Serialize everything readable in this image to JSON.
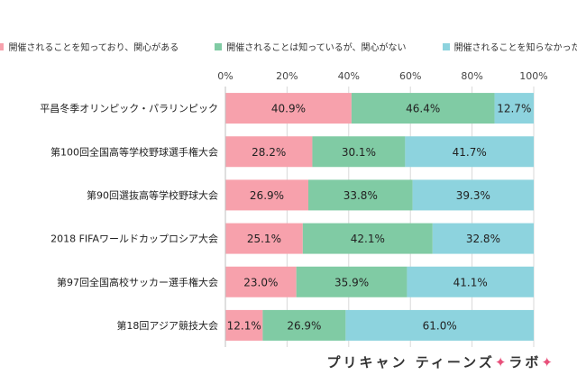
{
  "chart_data": {
    "type": "bar",
    "orientation": "horizontal",
    "stacked": true,
    "categories": [
      "平昌冬季オリンピック・パラリンピック",
      "第100回全国高等学校野球選手権大会",
      "第90回選抜高等学校野球大会",
      "2018 FIFAワールドカップロシア大会",
      "第97回全国高校サッカー選手権大会",
      "第18回アジア競技大会"
    ],
    "series": [
      {
        "name": "開催されることを知っており、関心がある",
        "color": "#f7a1ac",
        "values": [
          40.9,
          28.2,
          26.9,
          25.1,
          23.0,
          12.1
        ]
      },
      {
        "name": "開催されることは知っているが、関心がない",
        "color": "#80cba4",
        "values": [
          46.4,
          30.1,
          33.8,
          42.1,
          35.9,
          26.9
        ]
      },
      {
        "name": "開催されることを知らなかった",
        "color": "#8dd3de",
        "values": [
          12.7,
          41.7,
          39.3,
          32.8,
          41.1,
          61.0
        ]
      }
    ],
    "xlim": [
      0,
      100
    ],
    "xticks": [
      "0%",
      "20%",
      "40%",
      "60%",
      "80%",
      "100%"
    ],
    "grid": true,
    "legend_position": "top"
  },
  "brand": {
    "text": "プリキャン ティーンズ",
    "star1": "✦",
    "suffix": "ラボ",
    "star2": "✦"
  }
}
